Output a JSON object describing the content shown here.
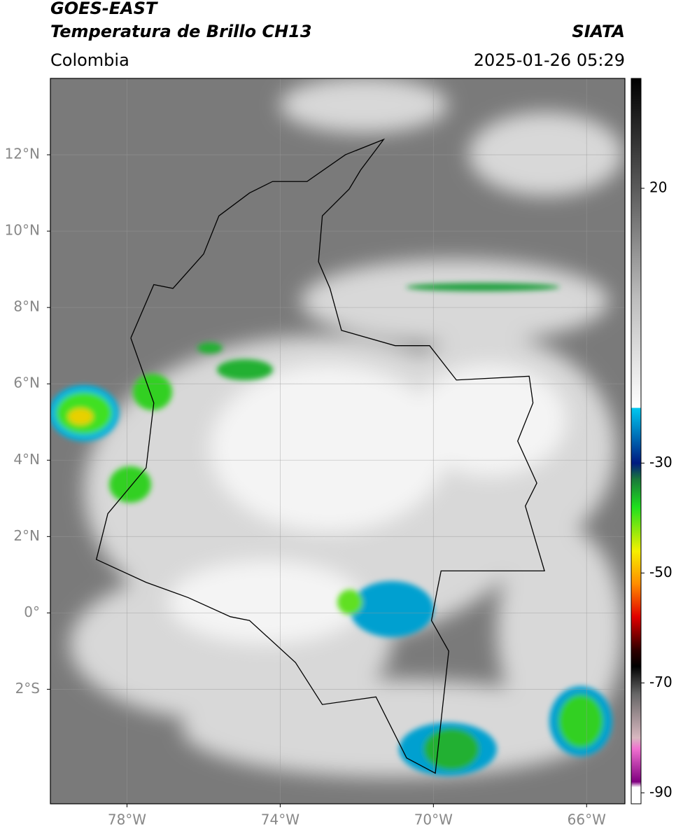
{
  "header": {
    "satellite": "GOES-EAST",
    "product": "Temperatura de Brillo CH13",
    "agency": "SIATA",
    "region": "Colombia",
    "datetime": "2025-01-26 05:29"
  },
  "map": {
    "xlim": [
      -80,
      -65
    ],
    "ylim": [
      -5,
      14
    ],
    "xticks": [
      {
        "value": -78,
        "label": "78°W"
      },
      {
        "value": -74,
        "label": "74°W"
      },
      {
        "value": -70,
        "label": "70°W"
      },
      {
        "value": -66,
        "label": "66°W"
      }
    ],
    "yticks": [
      {
        "value": 12,
        "label": "12°N"
      },
      {
        "value": 10,
        "label": "10°N"
      },
      {
        "value": 8,
        "label": "8°N"
      },
      {
        "value": 6,
        "label": "6°N"
      },
      {
        "value": 4,
        "label": "4°N"
      },
      {
        "value": 2,
        "label": "2°N"
      },
      {
        "value": 0,
        "label": "0°"
      },
      {
        "value": -2,
        "label": "2°S"
      }
    ],
    "grid": true
  },
  "colorbar": {
    "lim": [
      -92,
      40
    ],
    "ticks": [
      20,
      -30,
      -50,
      -70,
      -90
    ],
    "colormap": [
      [
        40,
        "#000000"
      ],
      [
        20,
        "#5a5a5a"
      ],
      [
        0,
        "#bdbdbd"
      ],
      [
        -19.9,
        "#ffffff"
      ],
      [
        -20,
        "#00c8f0"
      ],
      [
        -30,
        "#001a80"
      ],
      [
        -33,
        "#1a7a3a"
      ],
      [
        -38,
        "#1ee01e"
      ],
      [
        -46,
        "#f5f000"
      ],
      [
        -52,
        "#ff8c00"
      ],
      [
        -58,
        "#e00000"
      ],
      [
        -64,
        "#300000"
      ],
      [
        -67,
        "#000000"
      ],
      [
        -72,
        "#666666"
      ],
      [
        -80,
        "#d8b8c0"
      ],
      [
        -82,
        "#f070d0"
      ],
      [
        -88,
        "#800080"
      ],
      [
        -89,
        "#ffffff"
      ],
      [
        -92,
        "#ffffff"
      ]
    ]
  }
}
